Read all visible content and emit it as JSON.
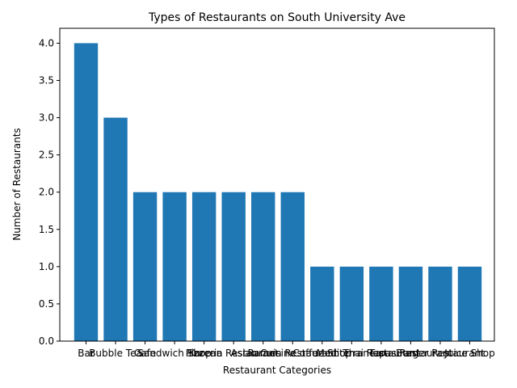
{
  "chart_data": {
    "type": "bar",
    "title": "Types of Restaurants on South University Ave",
    "xlabel": "Restaurant Categories",
    "ylabel": "Number of Restaurants",
    "ylim": [
      0,
      4.2
    ],
    "yticks": [
      "0.0",
      "0.5",
      "1.0",
      "1.5",
      "2.0",
      "2.5",
      "3.0",
      "3.5",
      "4.0"
    ],
    "grid": false,
    "bar_color": "#1f77b4",
    "categories": [
      "Bar",
      "Bubble Tea",
      "Cafe",
      "Sandwich Shop",
      "Pizzeria",
      "Korean Restaurant",
      "Asian Cuisine",
      "Ramen Restaurant",
      "Coffee Shop",
      "Mediterranean",
      "Thai Restaurant",
      "Tapas Restaurant",
      "Burger Restaurant",
      "Juice Shop"
    ],
    "values": [
      4,
      3,
      2,
      2,
      2,
      2,
      2,
      2,
      1,
      1,
      1,
      1,
      1,
      1
    ]
  }
}
